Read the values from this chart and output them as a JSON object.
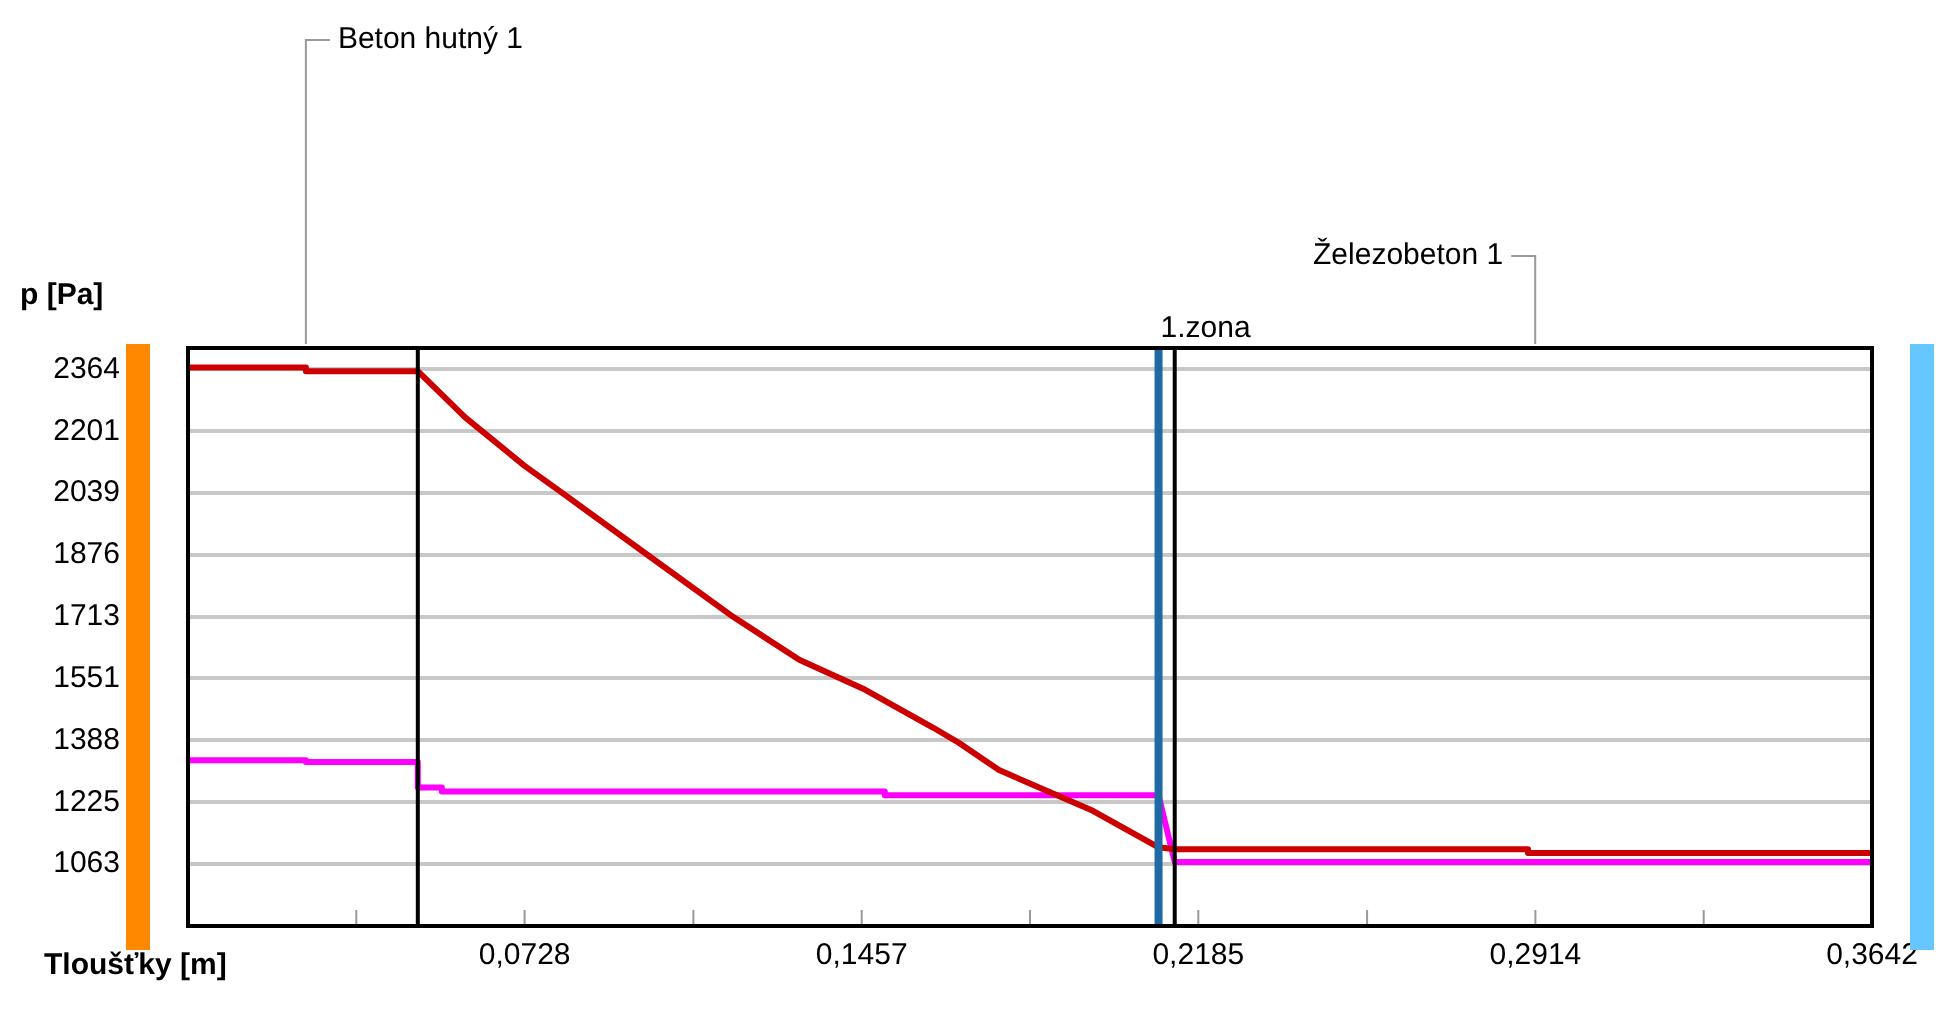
{
  "chart_data": {
    "type": "line",
    "xlabel": "Tloušťky [m]",
    "ylabel": "p [Pa]",
    "xlim": [
      0,
      0.3642
    ],
    "ylim": [
      900,
      2420
    ],
    "xticks": [
      {
        "value": 0.0364,
        "label": null
      },
      {
        "value": 0.0728,
        "label": "0,0728"
      },
      {
        "value": 0.1093,
        "label": null
      },
      {
        "value": 0.1457,
        "label": "0,1457"
      },
      {
        "value": 0.1821,
        "label": null
      },
      {
        "value": 0.2185,
        "label": "0,2185"
      },
      {
        "value": 0.255,
        "label": null
      },
      {
        "value": 0.2914,
        "label": "0,2914"
      },
      {
        "value": 0.3278,
        "label": null
      },
      {
        "value": 0.3642,
        "label": "0,3642"
      }
    ],
    "yticks": [
      1063,
      1225,
      1388,
      1551,
      1713,
      1876,
      2039,
      2201,
      2364
    ],
    "grid": "y",
    "legend": false,
    "marker": "none",
    "line_style": "solid",
    "series": [
      {
        "color": "#cc0000",
        "x": [
          0,
          0.0255,
          0.0255,
          0.0497,
          0.06,
          0.0728,
          0.0816,
          0.1006,
          0.1179,
          0.1322,
          0.146,
          0.1611,
          0.1667,
          0.1754,
          0.1957,
          0.2099,
          0.2134,
          0.2898,
          0.2898,
          0.3642
        ],
        "values": [
          2369,
          2369,
          2359,
          2359,
          2237,
          2110,
          2033,
          1865,
          1713,
          1600,
          1524,
          1422,
          1382,
          1310,
          1203,
          1107,
          1102,
          1102,
          1092,
          1092
        ]
      },
      {
        "color": "#ff00ff",
        "x": [
          0,
          0.0255,
          0.0255,
          0.0497,
          0.0497,
          0.0549,
          0.0549,
          0.1507,
          0.1507,
          0.2099,
          0.2134,
          0.3642
        ],
        "values": [
          1336,
          1336,
          1331,
          1331,
          1264,
          1264,
          1254,
          1254,
          1244,
          1244,
          1068,
          1068
        ]
      }
    ],
    "ref_lines": [
      {
        "axis": "x",
        "value": 0.0497,
        "color": "#000000"
      },
      {
        "axis": "x",
        "value": 0.2099,
        "color": "#1f6aa5",
        "label": "1.zona"
      },
      {
        "axis": "x",
        "value": 0.2134,
        "color": "#000000"
      }
    ],
    "annotations": [
      "Beton hutný 1",
      "Železobeton 1"
    ]
  }
}
